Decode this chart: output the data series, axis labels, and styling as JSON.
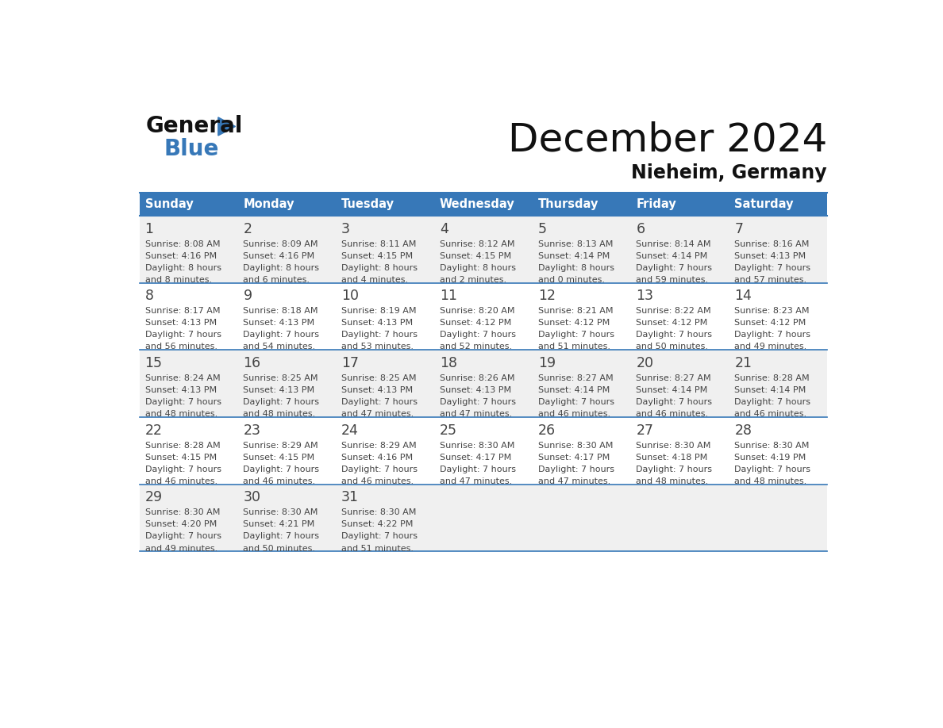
{
  "title": "December 2024",
  "subtitle": "Nieheim, Germany",
  "days_of_week": [
    "Sunday",
    "Monday",
    "Tuesday",
    "Wednesday",
    "Thursday",
    "Friday",
    "Saturday"
  ],
  "header_bg_color": "#3778b8",
  "header_text_color": "#ffffff",
  "row_bg_even": "#f0f0f0",
  "row_bg_odd": "#ffffff",
  "border_color": "#3778b8",
  "text_color": "#444444",
  "title_color": "#111111",
  "subtitle_color": "#111111",
  "logo_general_color": "#111111",
  "logo_blue_color": "#3778b8",
  "logo_triangle_color": "#3778b8",
  "weeks": [
    [
      {
        "day": 1,
        "sunrise": "8:08 AM",
        "sunset": "4:16 PM",
        "daylight1": "8 hours",
        "daylight2": "and 8 minutes."
      },
      {
        "day": 2,
        "sunrise": "8:09 AM",
        "sunset": "4:16 PM",
        "daylight1": "8 hours",
        "daylight2": "and 6 minutes."
      },
      {
        "day": 3,
        "sunrise": "8:11 AM",
        "sunset": "4:15 PM",
        "daylight1": "8 hours",
        "daylight2": "and 4 minutes."
      },
      {
        "day": 4,
        "sunrise": "8:12 AM",
        "sunset": "4:15 PM",
        "daylight1": "8 hours",
        "daylight2": "and 2 minutes."
      },
      {
        "day": 5,
        "sunrise": "8:13 AM",
        "sunset": "4:14 PM",
        "daylight1": "8 hours",
        "daylight2": "and 0 minutes."
      },
      {
        "day": 6,
        "sunrise": "8:14 AM",
        "sunset": "4:14 PM",
        "daylight1": "7 hours",
        "daylight2": "and 59 minutes."
      },
      {
        "day": 7,
        "sunrise": "8:16 AM",
        "sunset": "4:13 PM",
        "daylight1": "7 hours",
        "daylight2": "and 57 minutes."
      }
    ],
    [
      {
        "day": 8,
        "sunrise": "8:17 AM",
        "sunset": "4:13 PM",
        "daylight1": "7 hours",
        "daylight2": "and 56 minutes."
      },
      {
        "day": 9,
        "sunrise": "8:18 AM",
        "sunset": "4:13 PM",
        "daylight1": "7 hours",
        "daylight2": "and 54 minutes."
      },
      {
        "day": 10,
        "sunrise": "8:19 AM",
        "sunset": "4:13 PM",
        "daylight1": "7 hours",
        "daylight2": "and 53 minutes."
      },
      {
        "day": 11,
        "sunrise": "8:20 AM",
        "sunset": "4:12 PM",
        "daylight1": "7 hours",
        "daylight2": "and 52 minutes."
      },
      {
        "day": 12,
        "sunrise": "8:21 AM",
        "sunset": "4:12 PM",
        "daylight1": "7 hours",
        "daylight2": "and 51 minutes."
      },
      {
        "day": 13,
        "sunrise": "8:22 AM",
        "sunset": "4:12 PM",
        "daylight1": "7 hours",
        "daylight2": "and 50 minutes."
      },
      {
        "day": 14,
        "sunrise": "8:23 AM",
        "sunset": "4:12 PM",
        "daylight1": "7 hours",
        "daylight2": "and 49 minutes."
      }
    ],
    [
      {
        "day": 15,
        "sunrise": "8:24 AM",
        "sunset": "4:13 PM",
        "daylight1": "7 hours",
        "daylight2": "and 48 minutes."
      },
      {
        "day": 16,
        "sunrise": "8:25 AM",
        "sunset": "4:13 PM",
        "daylight1": "7 hours",
        "daylight2": "and 48 minutes."
      },
      {
        "day": 17,
        "sunrise": "8:25 AM",
        "sunset": "4:13 PM",
        "daylight1": "7 hours",
        "daylight2": "and 47 minutes."
      },
      {
        "day": 18,
        "sunrise": "8:26 AM",
        "sunset": "4:13 PM",
        "daylight1": "7 hours",
        "daylight2": "and 47 minutes."
      },
      {
        "day": 19,
        "sunrise": "8:27 AM",
        "sunset": "4:14 PM",
        "daylight1": "7 hours",
        "daylight2": "and 46 minutes."
      },
      {
        "day": 20,
        "sunrise": "8:27 AM",
        "sunset": "4:14 PM",
        "daylight1": "7 hours",
        "daylight2": "and 46 minutes."
      },
      {
        "day": 21,
        "sunrise": "8:28 AM",
        "sunset": "4:14 PM",
        "daylight1": "7 hours",
        "daylight2": "and 46 minutes."
      }
    ],
    [
      {
        "day": 22,
        "sunrise": "8:28 AM",
        "sunset": "4:15 PM",
        "daylight1": "7 hours",
        "daylight2": "and 46 minutes."
      },
      {
        "day": 23,
        "sunrise": "8:29 AM",
        "sunset": "4:15 PM",
        "daylight1": "7 hours",
        "daylight2": "and 46 minutes."
      },
      {
        "day": 24,
        "sunrise": "8:29 AM",
        "sunset": "4:16 PM",
        "daylight1": "7 hours",
        "daylight2": "and 46 minutes."
      },
      {
        "day": 25,
        "sunrise": "8:30 AM",
        "sunset": "4:17 PM",
        "daylight1": "7 hours",
        "daylight2": "and 47 minutes."
      },
      {
        "day": 26,
        "sunrise": "8:30 AM",
        "sunset": "4:17 PM",
        "daylight1": "7 hours",
        "daylight2": "and 47 minutes."
      },
      {
        "day": 27,
        "sunrise": "8:30 AM",
        "sunset": "4:18 PM",
        "daylight1": "7 hours",
        "daylight2": "and 48 minutes."
      },
      {
        "day": 28,
        "sunrise": "8:30 AM",
        "sunset": "4:19 PM",
        "daylight1": "7 hours",
        "daylight2": "and 48 minutes."
      }
    ],
    [
      {
        "day": 29,
        "sunrise": "8:30 AM",
        "sunset": "4:20 PM",
        "daylight1": "7 hours",
        "daylight2": "and 49 minutes."
      },
      {
        "day": 30,
        "sunrise": "8:30 AM",
        "sunset": "4:21 PM",
        "daylight1": "7 hours",
        "daylight2": "and 50 minutes."
      },
      {
        "day": 31,
        "sunrise": "8:30 AM",
        "sunset": "4:22 PM",
        "daylight1": "7 hours",
        "daylight2": "and 51 minutes."
      },
      null,
      null,
      null,
      null
    ]
  ]
}
